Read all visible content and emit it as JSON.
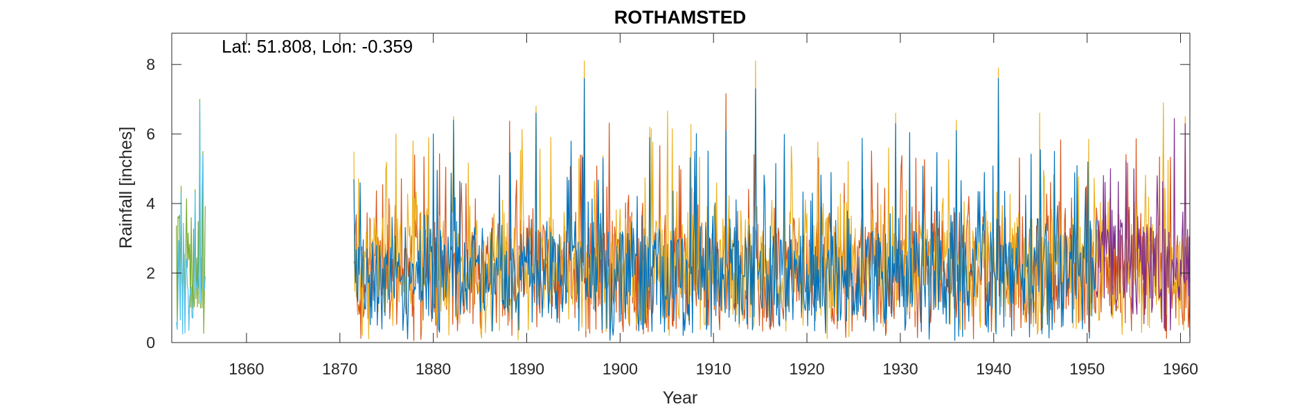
{
  "chart_data": {
    "type": "line",
    "title": "ROTHAMSTED",
    "annotation": "Lat: 51.808, Lon: -0.359",
    "xlabel": "Year",
    "ylabel": "Rainfall [inches]",
    "xlim": [
      1852.0,
      1961.0
    ],
    "ylim": [
      0,
      8.9
    ],
    "xticks": [
      1860,
      1870,
      1880,
      1890,
      1900,
      1910,
      1920,
      1930,
      1940,
      1950,
      1960
    ],
    "yticks": [
      0,
      2,
      4,
      6,
      8
    ],
    "grid": false,
    "legend": "none",
    "series": [
      {
        "color": "#77AC30",
        "x_start": 1852.5,
        "x_end": 1855.6,
        "peaks": [
          [
            1853.0,
            4.5
          ],
          [
            1854.5,
            4.4
          ],
          [
            1855.0,
            7.0
          ],
          [
            1855.3,
            5.5
          ]
        ],
        "base": 1.8,
        "amp": 1.6,
        "seed": 11
      },
      {
        "color": "#4DBEEE",
        "x_start": 1852.5,
        "x_end": 1855.6,
        "peaks": [
          [
            1853.0,
            4.3
          ],
          [
            1854.5,
            4.3
          ],
          [
            1855.0,
            6.9
          ],
          [
            1855.3,
            5.4
          ]
        ],
        "base": 1.5,
        "amp": 1.4,
        "seed": 12
      },
      {
        "color": "#D95319",
        "x_start": 1871.5,
        "x_end": 1961.0,
        "peaks": [],
        "base": 2.0,
        "amp": 1.5,
        "seed": 21
      },
      {
        "color": "#EDB120",
        "x_start": 1871.5,
        "x_end": 1961.0,
        "peaks": [
          [
            1876.0,
            6.0
          ],
          [
            1877.8,
            5.8
          ],
          [
            1879.5,
            5.9
          ],
          [
            1882.2,
            6.5
          ],
          [
            1891.0,
            6.8
          ],
          [
            1896.2,
            8.1
          ],
          [
            1903.2,
            6.2
          ],
          [
            1914.5,
            8.1
          ],
          [
            1929.5,
            6.6
          ],
          [
            1936.0,
            6.4
          ],
          [
            1940.5,
            7.9
          ],
          [
            1960.5,
            6.5
          ]
        ],
        "base": 2.1,
        "amp": 1.5,
        "seed": 22
      },
      {
        "color": "#0072BD",
        "x_start": 1871.5,
        "x_end": 1951.0,
        "peaks": [
          [
            1871.5,
            4.7
          ],
          [
            1872.2,
            4.6
          ],
          [
            1880.0,
            6.0
          ],
          [
            1882.2,
            6.4
          ],
          [
            1891.0,
            6.6
          ],
          [
            1896.2,
            7.6
          ],
          [
            1903.2,
            5.9
          ],
          [
            1908.0,
            5.5
          ],
          [
            1911.3,
            6.1
          ],
          [
            1914.5,
            7.3
          ],
          [
            1929.5,
            6.3
          ],
          [
            1936.0,
            6.1
          ],
          [
            1940.5,
            7.6
          ],
          [
            1946.5,
            5.5
          ]
        ],
        "base": 1.9,
        "amp": 1.4,
        "seed": 31
      },
      {
        "color": "#7E2F8E",
        "x_start": 1951.0,
        "x_end": 1961.0,
        "peaks": [
          [
            1952.5,
            5.0
          ],
          [
            1955.0,
            5.0
          ],
          [
            1957.5,
            4.8
          ],
          [
            1960.5,
            6.3
          ]
        ],
        "base": 2.2,
        "amp": 1.5,
        "seed": 41
      }
    ]
  }
}
